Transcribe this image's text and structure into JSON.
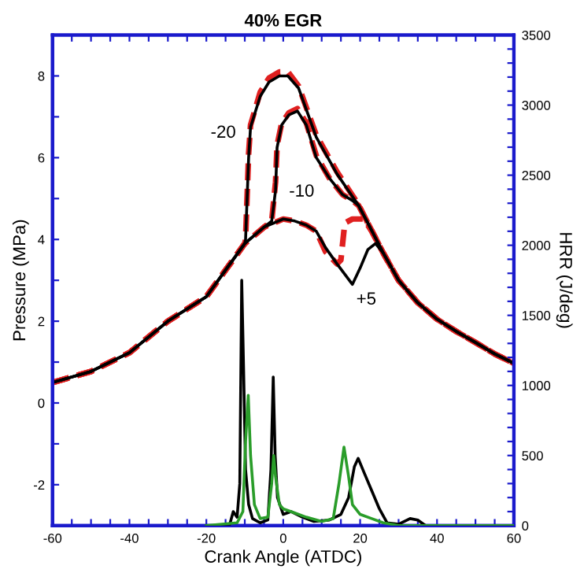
{
  "chart_data": {
    "type": "line",
    "title": "40% EGR",
    "xlabel": "Crank Angle (ATDC)",
    "ylabel": "Pressure (MPa)",
    "y2label": "HRR (J/deg)",
    "xlim": [
      -60,
      60
    ],
    "ylim": [
      -3,
      9
    ],
    "y2lim": [
      0,
      3500
    ],
    "xticks": [
      -60,
      {
        "value": -55,
        "label": null
      },
      {
        "value": -50,
        "label": null
      },
      {
        "value": -45,
        "label": null
      },
      -40,
      {
        "value": -35,
        "label": null
      },
      {
        "value": -30,
        "label": null
      },
      {
        "value": -25,
        "label": null
      },
      -20,
      {
        "value": -15,
        "label": null
      },
      {
        "value": -10,
        "label": null
      },
      {
        "value": -5,
        "label": null
      },
      0,
      {
        "value": 5,
        "label": null
      },
      {
        "value": 10,
        "label": null
      },
      {
        "value": 15,
        "label": null
      },
      20,
      {
        "value": 25,
        "label": null
      },
      {
        "value": 30,
        "label": null
      },
      {
        "value": 35,
        "label": null
      },
      40,
      {
        "value": 45,
        "label": null
      },
      {
        "value": 50,
        "label": null
      },
      {
        "value": 55,
        "label": null
      },
      60
    ],
    "yticks": [
      {
        "value": -3,
        "label": null
      },
      -2,
      {
        "value": -1,
        "label": null
      },
      0,
      {
        "value": 1,
        "label": null
      },
      2,
      {
        "value": 3,
        "label": null
      },
      4,
      {
        "value": 5,
        "label": null
      },
      6,
      {
        "value": 7,
        "label": null
      },
      8
    ],
    "y2ticks": [
      0,
      {
        "value": 100,
        "label": null
      },
      {
        "value": 200,
        "label": null
      },
      {
        "value": 300,
        "label": null
      },
      {
        "value": 400,
        "label": null
      },
      500,
      {
        "value": 600,
        "label": null
      },
      {
        "value": 700,
        "label": null
      },
      {
        "value": 800,
        "label": null
      },
      {
        "value": 900,
        "label": null
      },
      1000,
      {
        "value": 1100,
        "label": null
      },
      {
        "value": 1200,
        "label": null
      },
      {
        "value": 1300,
        "label": null
      },
      {
        "value": 1400,
        "label": null
      },
      1500,
      {
        "value": 1600,
        "label": null
      },
      {
        "value": 1700,
        "label": null
      },
      {
        "value": 1800,
        "label": null
      },
      {
        "value": 1900,
        "label": null
      },
      2000,
      {
        "value": 2100,
        "label": null
      },
      {
        "value": 2200,
        "label": null
      },
      {
        "value": 2300,
        "label": null
      },
      {
        "value": 2400,
        "label": null
      },
      2500,
      {
        "value": 2600,
        "label": null
      },
      {
        "value": 2700,
        "label": null
      },
      {
        "value": 2800,
        "label": null
      },
      {
        "value": 2900,
        "label": null
      },
      3000,
      {
        "value": 3100,
        "label": null
      },
      {
        "value": 3200,
        "label": null
      },
      {
        "value": 3300,
        "label": null
      },
      {
        "value": 3400,
        "label": null
      },
      3500
    ],
    "grid": false,
    "legend": false,
    "series": [
      {
        "color": "#e02020",
        "line_style": "dashed",
        "x": [
          -60,
          -50,
          -40,
          -30,
          -20,
          -15,
          -10,
          -9.8,
          -9,
          -8.5,
          -6,
          -3.7,
          -1,
          1.2,
          4,
          8.6,
          14,
          19.6,
          22,
          26,
          30,
          35,
          40,
          45,
          50,
          55,
          60
        ],
        "values": [
          0.5,
          0.77,
          1.23,
          2.0,
          2.6,
          3.25,
          3.9,
          4.0,
          6.1,
          6.8,
          7.6,
          7.95,
          8.1,
          8.1,
          7.75,
          6.55,
          5.65,
          4.85,
          4.4,
          3.67,
          3.0,
          2.45,
          2.05,
          1.75,
          1.48,
          1.2,
          0.97
        ]
      },
      {
        "color": "#e02020",
        "line_style": "dashed",
        "x": [
          -60,
          -50,
          -40,
          -30,
          -20,
          -15,
          -10,
          -5,
          -3,
          -2,
          -1.6,
          -0.4,
          1.5,
          3.7,
          6,
          8.6,
          12,
          15.4,
          18,
          19.6,
          22,
          26,
          30,
          35,
          40,
          45,
          50,
          55,
          60
        ],
        "values": [
          0.5,
          0.77,
          1.23,
          2.0,
          2.6,
          3.25,
          3.9,
          4.3,
          4.45,
          5.4,
          6.3,
          6.85,
          7.1,
          7.2,
          6.85,
          6.05,
          5.5,
          5.1,
          4.95,
          4.83,
          4.4,
          3.67,
          3.0,
          2.45,
          2.05,
          1.75,
          1.48,
          1.2,
          0.97
        ]
      },
      {
        "color": "#e02020",
        "line_style": "dashed",
        "x": [
          -60,
          -50,
          -40,
          -30,
          -20,
          -15,
          -10,
          -5,
          0,
          3,
          6,
          8.6,
          11,
          14,
          15,
          16,
          18,
          21,
          23,
          26,
          30,
          35,
          40,
          45,
          50,
          55,
          60
        ],
        "values": [
          0.5,
          0.77,
          1.23,
          2.0,
          2.6,
          3.25,
          3.9,
          4.3,
          4.5,
          4.45,
          4.35,
          4.2,
          3.7,
          3.4,
          3.5,
          4.4,
          4.5,
          4.5,
          4.2,
          3.67,
          3.0,
          2.45,
          2.05,
          1.75,
          1.48,
          1.2,
          0.97
        ]
      },
      {
        "color": "#000000",
        "line_style": "solid",
        "x": [
          -60,
          -50,
          -40,
          -30,
          -20,
          -15,
          -10,
          -9.8,
          -9,
          -8.5,
          -6,
          -3.7,
          -1,
          1.2,
          4,
          8.6,
          14,
          19.6,
          22,
          26,
          30,
          35,
          40,
          45,
          50,
          55,
          60
        ],
        "values": [
          0.5,
          0.77,
          1.23,
          2.0,
          2.6,
          3.25,
          3.9,
          4.0,
          6.0,
          6.75,
          7.5,
          7.85,
          8.0,
          8.0,
          7.7,
          6.5,
          5.6,
          4.83,
          4.4,
          3.67,
          3.0,
          2.45,
          2.05,
          1.75,
          1.48,
          1.2,
          0.97
        ]
      },
      {
        "color": "#000000",
        "line_style": "solid",
        "x": [
          -60,
          -50,
          -40,
          -30,
          -20,
          -15,
          -10,
          -5,
          -3,
          -2,
          -1.6,
          -0.4,
          1.5,
          3.7,
          6,
          8.6,
          12,
          15.4,
          18,
          19.6,
          22,
          26,
          30,
          35,
          40,
          45,
          50,
          55,
          60
        ],
        "values": [
          0.5,
          0.77,
          1.23,
          2.0,
          2.6,
          3.25,
          3.9,
          4.3,
          4.45,
          5.2,
          6.25,
          6.8,
          7.05,
          7.14,
          6.8,
          6.0,
          5.5,
          5.1,
          4.95,
          4.83,
          4.4,
          3.67,
          3.0,
          2.45,
          2.05,
          1.75,
          1.48,
          1.2,
          0.97
        ]
      },
      {
        "color": "#000000",
        "line_style": "solid",
        "x": [
          -60,
          -50,
          -40,
          -30,
          -20,
          -15,
          -10,
          -5,
          0,
          3,
          6,
          8.6,
          11,
          14,
          16,
          18,
          20,
          22,
          24,
          26,
          30,
          35,
          40,
          45,
          50,
          55,
          60
        ],
        "values": [
          0.5,
          0.77,
          1.23,
          2.0,
          2.6,
          3.25,
          3.9,
          4.3,
          4.5,
          4.45,
          4.35,
          4.2,
          3.8,
          3.4,
          3.15,
          2.9,
          3.3,
          3.75,
          3.9,
          3.67,
          3.0,
          2.45,
          2.05,
          1.75,
          1.48,
          1.2,
          0.97
        ]
      },
      {
        "color": "#000000",
        "line_style": "solid",
        "axis": "y2",
        "x": [
          -20,
          -14,
          -13,
          -12,
          -11.3,
          -10.8,
          -10.3,
          -9.8,
          -9,
          -8,
          -6,
          -4,
          -3.2,
          -2.6,
          -2.1,
          -1.5,
          0,
          2,
          5,
          8,
          12,
          15,
          17,
          18.5,
          19.5,
          21,
          23,
          25,
          27,
          30,
          33,
          35,
          37,
          60
        ],
        "values": [
          0,
          0,
          100,
          60,
          300,
          1750,
          1100,
          400,
          150,
          50,
          20,
          40,
          400,
          1060,
          500,
          200,
          80,
          100,
          60,
          30,
          40,
          80,
          200,
          420,
          480,
          380,
          250,
          120,
          20,
          10,
          50,
          40,
          0,
          0
        ]
      },
      {
        "color": "#2a9d2a",
        "line_style": "solid",
        "axis": "y2",
        "x": [
          -20,
          -12,
          -10.5,
          -9.8,
          -9.1,
          -8.5,
          -7.5,
          -6,
          -4,
          -3,
          -2.5,
          -2,
          -1,
          0,
          3,
          6,
          10,
          13,
          14.5,
          15.8,
          17,
          18,
          20,
          23,
          26,
          30,
          60
        ],
        "values": [
          0,
          20,
          100,
          600,
          930,
          500,
          150,
          50,
          60,
          300,
          500,
          350,
          150,
          120,
          90,
          60,
          30,
          50,
          300,
          560,
          350,
          150,
          80,
          50,
          20,
          0,
          0
        ]
      }
    ],
    "annotations": [
      "-20",
      "-10",
      "+5"
    ]
  }
}
